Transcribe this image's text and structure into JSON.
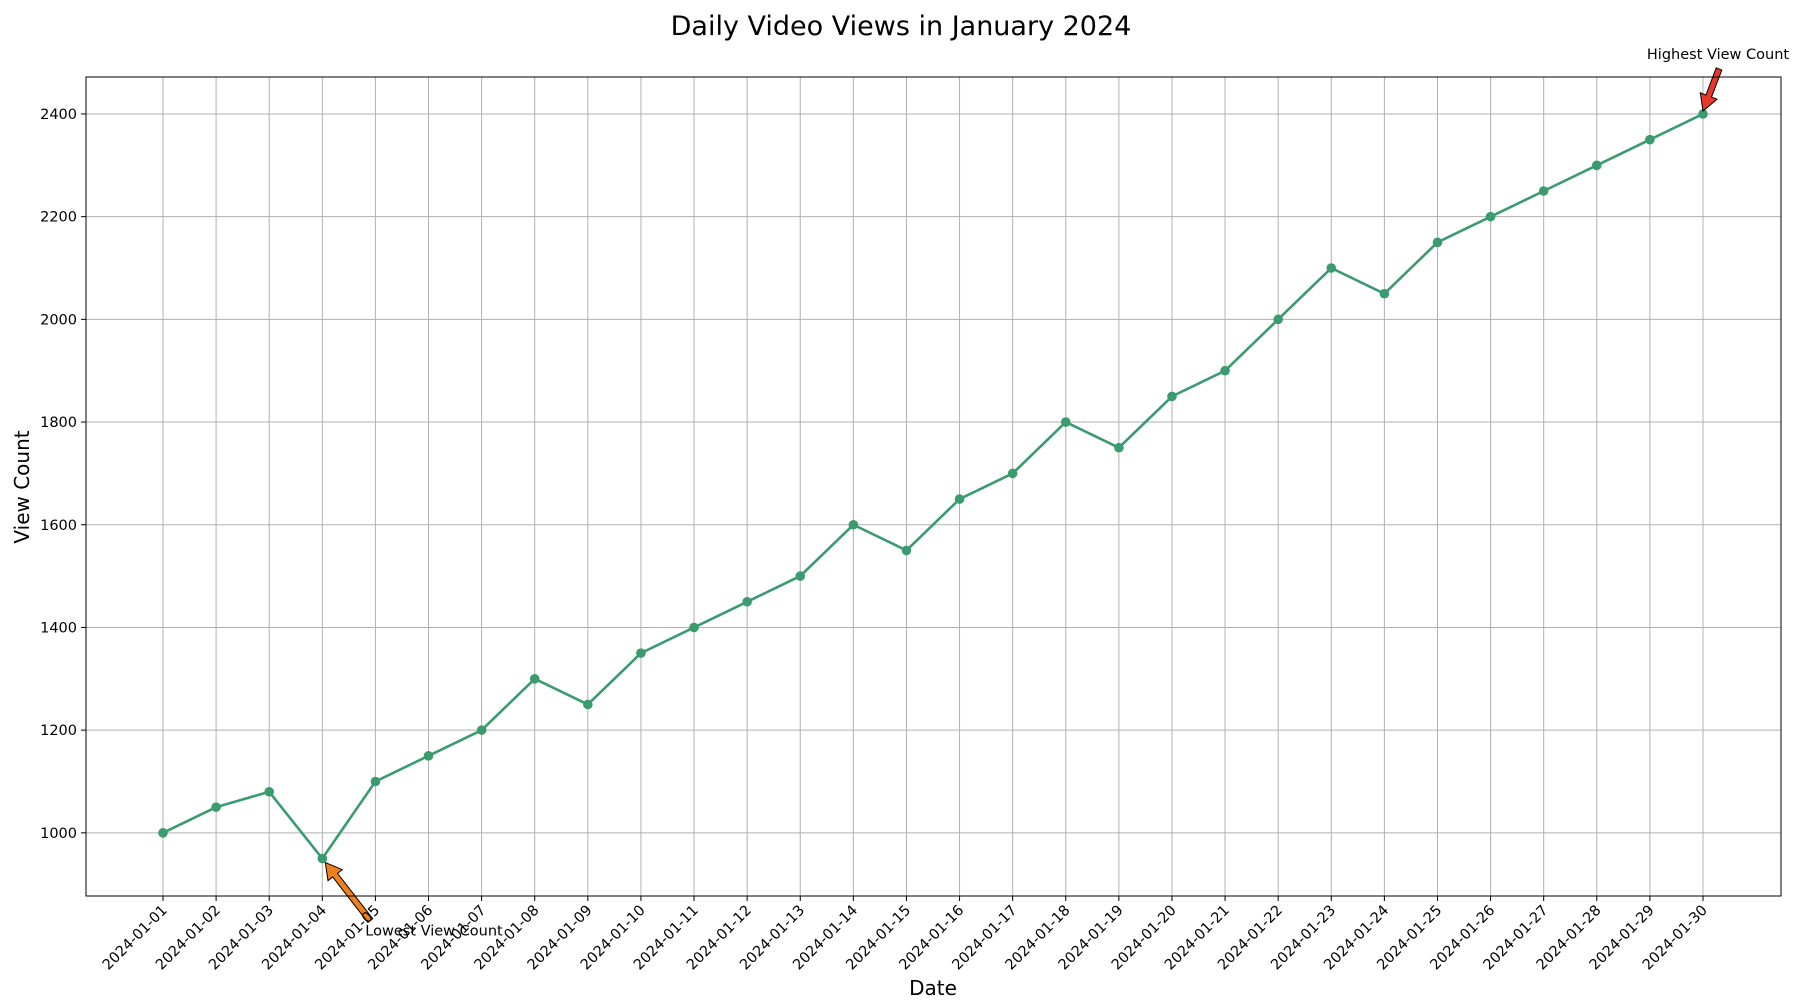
{
  "chart_data": {
    "type": "line",
    "title": "Daily Video Views in January 2024",
    "xlabel": "Date",
    "ylabel": "View Count",
    "x": [
      "2024-01-01",
      "2024-01-02",
      "2024-01-03",
      "2024-01-04",
      "2024-01-05",
      "2024-01-06",
      "2024-01-07",
      "2024-01-08",
      "2024-01-09",
      "2024-01-10",
      "2024-01-11",
      "2024-01-12",
      "2024-01-13",
      "2024-01-14",
      "2024-01-15",
      "2024-01-16",
      "2024-01-17",
      "2024-01-18",
      "2024-01-19",
      "2024-01-20",
      "2024-01-21",
      "2024-01-22",
      "2024-01-23",
      "2024-01-24",
      "2024-01-25",
      "2024-01-26",
      "2024-01-27",
      "2024-01-28",
      "2024-01-29",
      "2024-01-30"
    ],
    "series": [
      {
        "values": [
          1000,
          1050,
          1080,
          950,
          1100,
          1150,
          1200,
          1300,
          1250,
          1350,
          1400,
          1450,
          1500,
          1600,
          1550,
          1650,
          1700,
          1800,
          1750,
          1850,
          1900,
          2000,
          2100,
          2050,
          2150,
          2200,
          2250,
          2300,
          2350,
          2400
        ],
        "color": "#3a9b6e",
        "marker": "circle"
      }
    ],
    "ylim": [
      877,
      2472
    ],
    "yticks": [
      1000,
      1200,
      1400,
      1600,
      1800,
      2000,
      2200,
      2400
    ],
    "grid": true,
    "annotations": [
      {
        "text": "Lowest View Count",
        "x": "2024-01-04",
        "y": 950,
        "arrow_color": "#f07f1e"
      },
      {
        "text": "Highest View Count",
        "x": "2024-01-30",
        "y": 2400,
        "arrow_color": "#e8382b"
      }
    ]
  }
}
